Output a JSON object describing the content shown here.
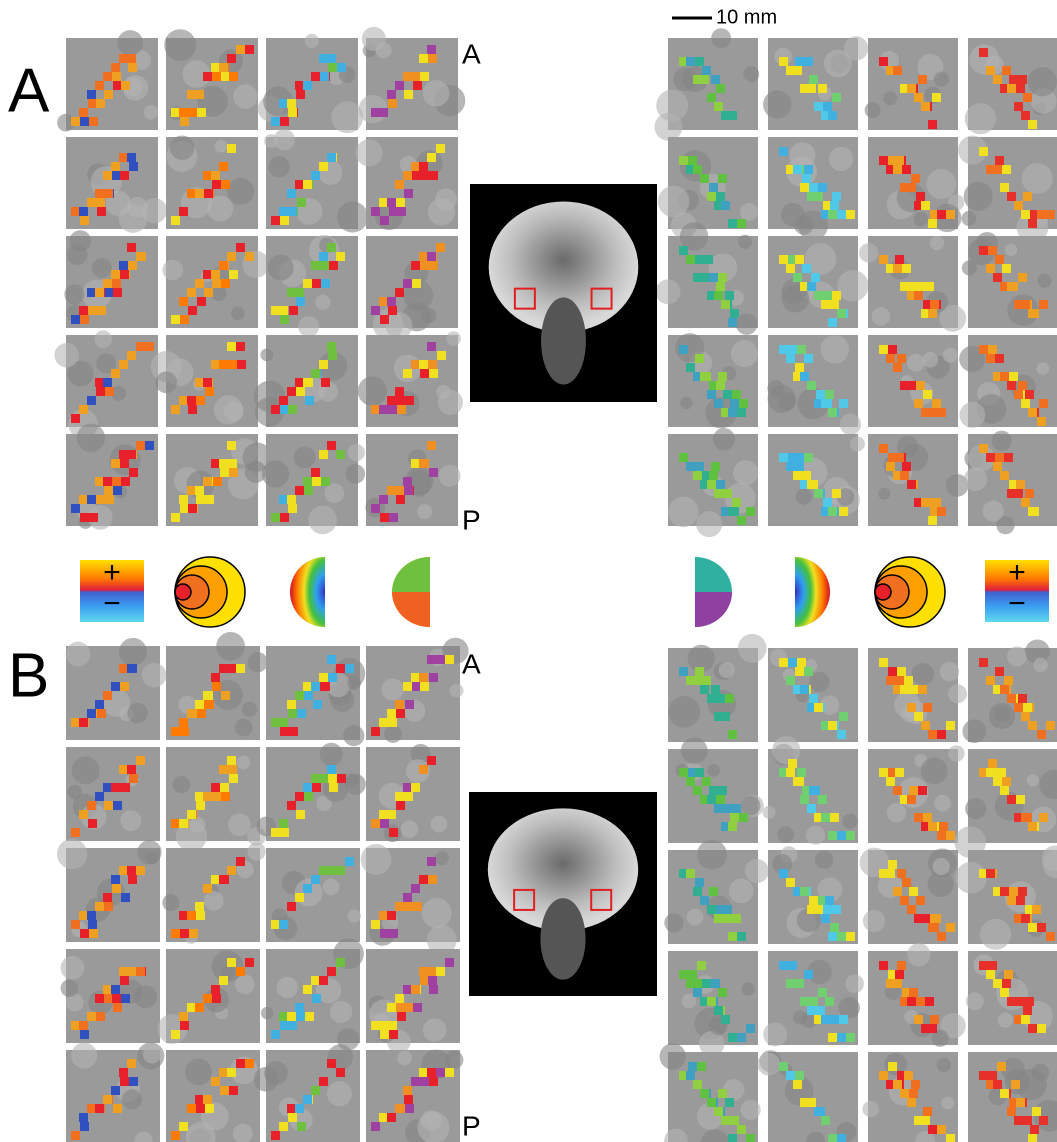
{
  "panels": [
    {
      "label": "A",
      "anterior": "A",
      "posterior": "P"
    },
    {
      "label": "B",
      "anterior": "A",
      "posterior": "P"
    }
  ],
  "scale_bar": "10 mm",
  "legends": [
    {
      "plus": "+",
      "minus": "−"
    },
    {
      "plus": "+",
      "minus": "−"
    }
  ]
}
